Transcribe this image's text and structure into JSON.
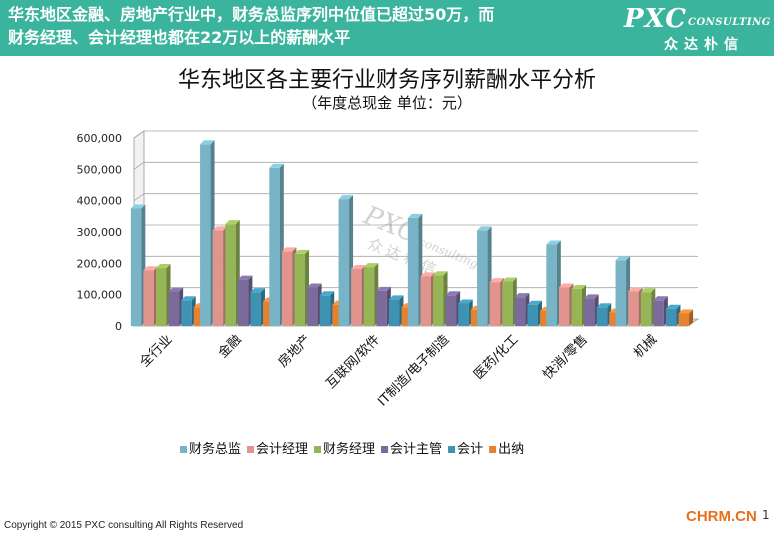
{
  "header": {
    "line1": "华东地区金融、房地产行业中，财务总监序列中位值已超过50万，而",
    "line2": "财务经理、会计经理也都在22万以上的薪酬水平",
    "logo_main": "PXC",
    "logo_sub": "CONSULTING",
    "logo_cn": "众达朴信"
  },
  "watermark": {
    "main": "PXC",
    "sub": "consulting",
    "cn": "众达朴信"
  },
  "footer": {
    "copyright": "Copyright © 2015 PXC consulting All Rights Reserved",
    "site": "CHRM.CN",
    "page": "1"
  },
  "colors": {
    "banner": "#3bb49d",
    "series": [
      "#78b4c5",
      "#e0948e",
      "#96b557",
      "#7b6a9c",
      "#3f93b2",
      "#e58230"
    ]
  },
  "chart_data": {
    "type": "bar",
    "title": "华东地区各主要行业财务序列薪酬水平分析",
    "subtitle": "（年度总现金 单位：元）",
    "xlabel": "",
    "ylabel": "",
    "ylim": [
      0,
      600000
    ],
    "yticks": [
      0,
      100000,
      200000,
      300000,
      400000,
      500000,
      600000
    ],
    "ytick_labels": [
      "0",
      "100,000",
      "200,000",
      "300,000",
      "400,000",
      "500,000",
      "600,000"
    ],
    "grid": true,
    "legend": "bottom",
    "categories": [
      "全行业",
      "金融",
      "房地产",
      "互联网/软件",
      "IT制造/电子制造",
      "医药/化工",
      "快消/零售",
      "机械"
    ],
    "series": [
      {
        "name": "财务总监",
        "values": [
          375000,
          580000,
          505000,
          405000,
          345000,
          305000,
          260000,
          210000
        ]
      },
      {
        "name": "会计经理",
        "values": [
          178000,
          305000,
          238000,
          182000,
          158000,
          140000,
          123000,
          110000
        ]
      },
      {
        "name": "财务经理",
        "values": [
          185000,
          325000,
          230000,
          188000,
          162000,
          142000,
          118000,
          108000
        ]
      },
      {
        "name": "会计主管",
        "values": [
          110000,
          148000,
          123000,
          112000,
          98000,
          92000,
          88000,
          82000
        ]
      },
      {
        "name": "会计",
        "values": [
          82000,
          108000,
          98000,
          85000,
          72000,
          68000,
          60000,
          55000
        ]
      },
      {
        "name": "出纳",
        "values": [
          60000,
          78000,
          68000,
          60000,
          52000,
          48000,
          43000,
          40000
        ]
      }
    ]
  }
}
